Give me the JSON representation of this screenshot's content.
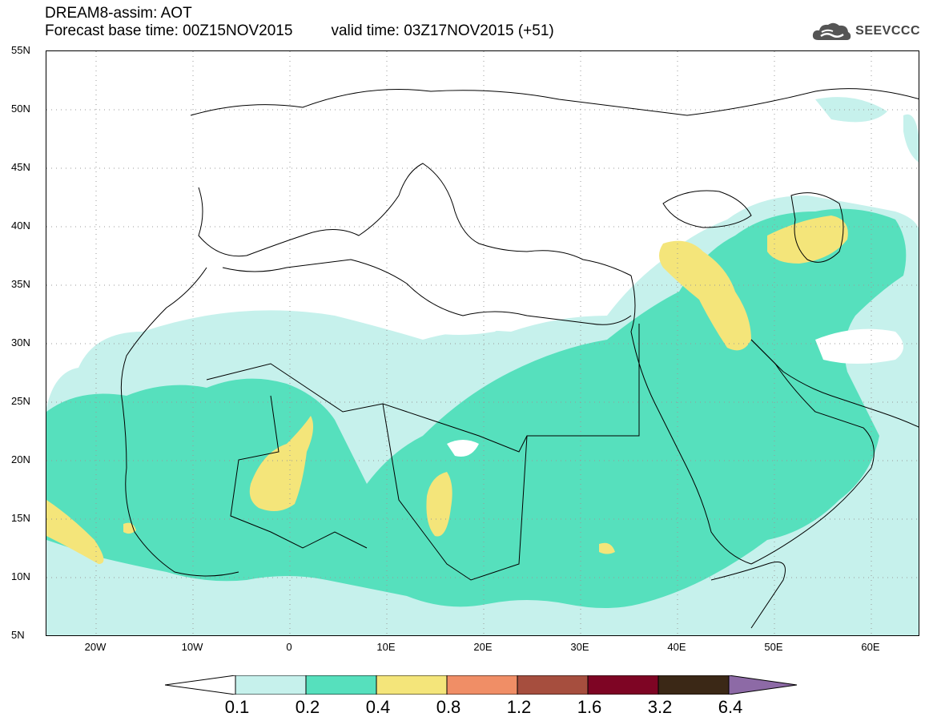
{
  "header": {
    "title": "DREAM8-assim: AOT",
    "base_time": "Forecast base time: 00Z15NOV2015",
    "valid_time": "valid time: 03Z17NOV2015 (+51)"
  },
  "logo": {
    "text": "SEEVCCC",
    "icon": "cloud-logo-icon",
    "color": "#444444"
  },
  "map": {
    "lat_labels": [
      "55N",
      "50N",
      "45N",
      "40N",
      "35N",
      "30N",
      "25N",
      "20N",
      "15N",
      "10N",
      "5N"
    ],
    "lon_labels": [
      "20W",
      "10W",
      "0",
      "10E",
      "20E",
      "30E",
      "40E",
      "50E",
      "60E"
    ],
    "lat_range": [
      5,
      55
    ],
    "lon_range": [
      -25,
      65
    ],
    "grid": "dotted"
  },
  "legend": {
    "labels": [
      "0.1",
      "0.2",
      "0.4",
      "0.8",
      "1.2",
      "1.6",
      "3.2",
      "6.4"
    ],
    "colors": [
      "#ffffff",
      "#c6f1ec",
      "#56e0bd",
      "#f4e57a",
      "#f08e66",
      "#a64e3e",
      "#7e0524",
      "#3b2816",
      "#8d6aa6"
    ]
  }
}
